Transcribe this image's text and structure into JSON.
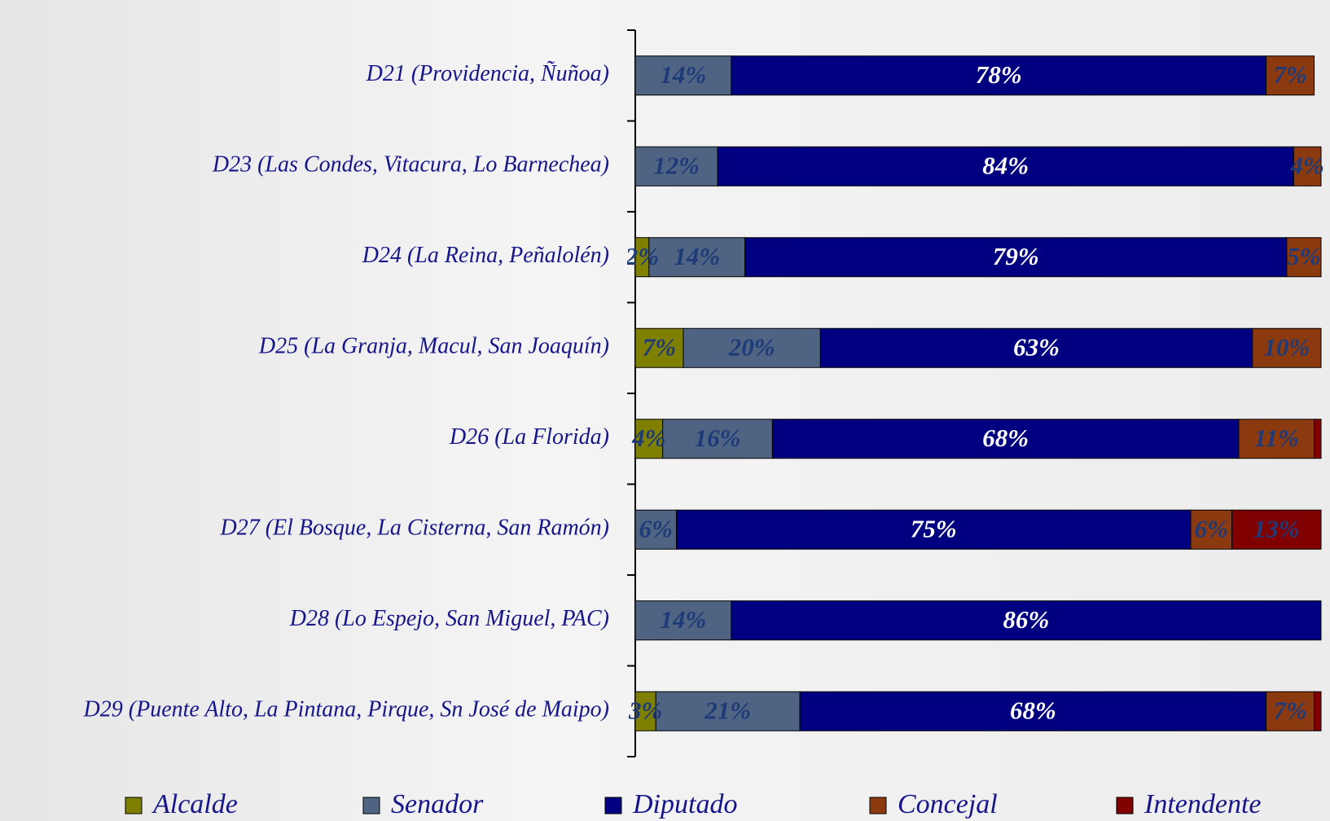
{
  "chart_data": {
    "type": "stacked_bar_horizontal",
    "categories": [
      "D21 (Providencia, Ñuñoa)",
      "D23 (Las Condes, Vitacura, Lo Barnechea)",
      "D24 (La Reina, Peñalolén)",
      "D25 (La Granja, Macul, San Joaquín)",
      "D26 (La Florida)",
      "D27 (El Bosque, La Cisterna, San Ramón)",
      "D28 (Lo Espejo, San Miguel, PAC)",
      "D29 (Puente Alto, La Pintana, Pirque, Sn José de Maipo)"
    ],
    "xlim": [
      0,
      100
    ],
    "series": [
      {
        "name": "Alcalde",
        "color": "#808000",
        "values": [
          0,
          0,
          2,
          7,
          4,
          0,
          0,
          3
        ],
        "value_labels": [
          null,
          null,
          "2%",
          "7%",
          "4%",
          null,
          null,
          "3%"
        ]
      },
      {
        "name": "Senador",
        "color": "#4f6482",
        "values": [
          14,
          12,
          14,
          20,
          16,
          6,
          14,
          21
        ],
        "value_labels": [
          "14%",
          "12%",
          "14%",
          "20%",
          "16%",
          "6%",
          "14%",
          "21%"
        ]
      },
      {
        "name": "Diputado",
        "color": "#000080",
        "values": [
          78,
          84,
          79,
          63,
          68,
          75,
          86,
          68
        ],
        "value_labels": [
          "78%",
          "84%",
          "79%",
          "63%",
          "68%",
          "75%",
          "86%",
          "68%"
        ]
      },
      {
        "name": "Concejal",
        "color": "#8b3a10",
        "values": [
          7,
          4,
          5,
          10,
          11,
          6,
          0,
          7
        ],
        "value_labels": [
          "7%",
          "4%",
          "5%",
          "10%",
          "11%",
          "6%",
          null,
          "7%"
        ]
      },
      {
        "name": "Intendente",
        "color": "#800000",
        "values": [
          0,
          0,
          0,
          0,
          1,
          13,
          0,
          1
        ],
        "value_labels": [
          null,
          null,
          null,
          null,
          null,
          "13%",
          null,
          null
        ]
      }
    ],
    "legend": "bottom"
  }
}
